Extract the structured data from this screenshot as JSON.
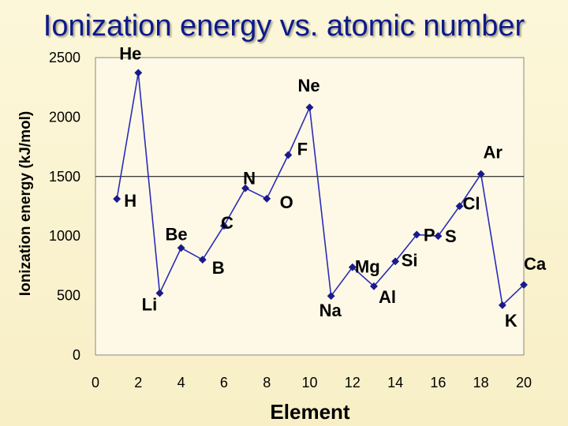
{
  "slide": {
    "title": "Ionization energy vs. atomic number"
  },
  "chart_data": {
    "type": "line",
    "title": "",
    "xlabel": "Element",
    "ylabel": "Ionization energy (kJ/mol)",
    "xlim": [
      0,
      20
    ],
    "ylim": [
      0,
      2500
    ],
    "x_ticks": [
      0,
      2,
      4,
      6,
      8,
      10,
      12,
      14,
      16,
      18,
      20
    ],
    "y_ticks": [
      0,
      500,
      1000,
      1500,
      2000,
      2500
    ],
    "grid": "horizontal line at 1500",
    "legend": "none",
    "series": [
      {
        "x": [
          1,
          2,
          3,
          4,
          5,
          6,
          7,
          8,
          9,
          10,
          11,
          12,
          13,
          14,
          15,
          16,
          17,
          18,
          19,
          20
        ],
        "y": [
          1312,
          2372,
          520,
          900,
          801,
          1086,
          1402,
          1314,
          1681,
          2081,
          496,
          738,
          578,
          787,
          1012,
          1000,
          1251,
          1521,
          419,
          590
        ],
        "labels": [
          "H",
          "He",
          "Li",
          "Be",
          "B",
          "C",
          "N",
          "O",
          "F",
          "Ne",
          "Na",
          "Mg",
          "Al",
          "Si",
          "P",
          "S",
          "Cl",
          "Ar",
          "K",
          "Ca"
        ]
      }
    ],
    "color": "#2b2bb8",
    "marker_color": "#1a1a8c",
    "plot_background": "#fdf9e6"
  }
}
